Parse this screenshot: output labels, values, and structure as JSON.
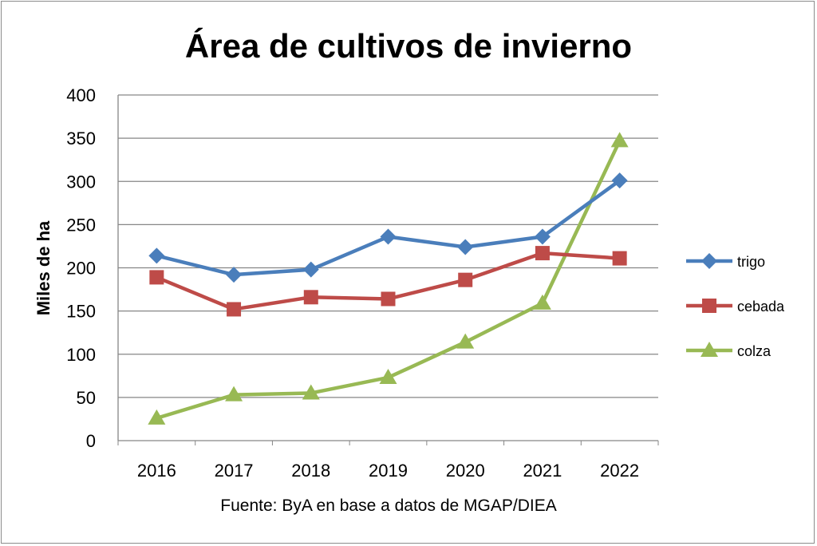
{
  "chart_data": {
    "type": "line",
    "title": "Área de cultivos de invierno",
    "xlabel": "Fuente: ByA en base a datos de MGAP/DIEA",
    "ylabel": "Miles de ha",
    "categories": [
      "2016",
      "2017",
      "2018",
      "2019",
      "2020",
      "2021",
      "2022"
    ],
    "ylim": [
      0,
      400
    ],
    "yticks": [
      0,
      50,
      100,
      150,
      200,
      250,
      300,
      350,
      400
    ],
    "grid": true,
    "legend_position": "right",
    "series": [
      {
        "name": "trigo",
        "color": "#4a7ebb",
        "marker": "diamond",
        "values": [
          214,
          192,
          198,
          236,
          224,
          236,
          301
        ]
      },
      {
        "name": "cebada",
        "color": "#be4b48",
        "marker": "square",
        "values": [
          189,
          152,
          166,
          164,
          186,
          217,
          211
        ]
      },
      {
        "name": "colza",
        "color": "#98b954",
        "marker": "triangle",
        "values": [
          26,
          53,
          55,
          73,
          114,
          159,
          347
        ]
      }
    ]
  }
}
